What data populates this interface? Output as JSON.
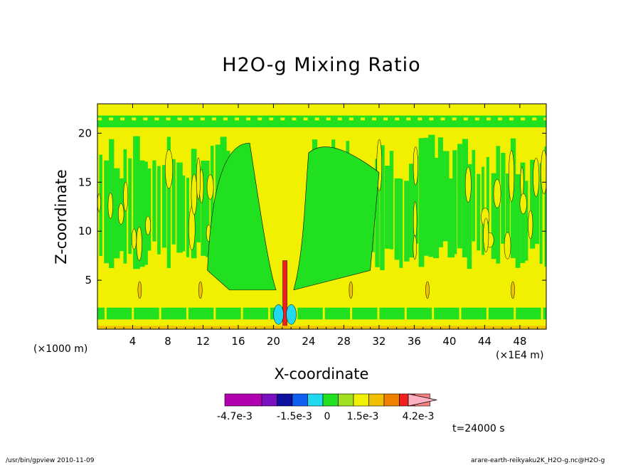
{
  "chart_data": {
    "type": "heatmap",
    "title": "H2O-g Mixing Ratio",
    "xlabel": "X-coordinate",
    "ylabel": "Z-coordinate",
    "x_unit_left": "(×1000 m)",
    "x_unit_right": "(×1E4 m)",
    "xlim": [
      0,
      51
    ],
    "ylim": [
      0,
      23
    ],
    "x_ticks": [
      4,
      8,
      12,
      16,
      20,
      24,
      28,
      32,
      36,
      40,
      44,
      48
    ],
    "y_ticks": [
      5,
      10,
      15,
      20
    ],
    "time_label": "t=24000 s",
    "colorbar": {
      "colors": [
        "#b000b0",
        "#7a10c0",
        "#1010a0",
        "#1060f0",
        "#20d8f0",
        "#20e020",
        "#a0e020",
        "#f0f000",
        "#f0c000",
        "#f08000",
        "#f02020",
        "#f88080",
        "#ffb0c0"
      ],
      "labels": [
        "-4.7e-3",
        "-1.5e-3",
        "0",
        "1.5e-3",
        "4.2e-3"
      ]
    },
    "field": {
      "background_level": "#f0f000",
      "low_level": "#20e020",
      "notable_features": [
        {
          "name": "updraft-core",
          "x": 21.3,
          "z_top": 7,
          "color": "#f02020"
        },
        {
          "name": "negative-anomaly",
          "x": 21.3,
          "z_top": 2.5,
          "color": "#20d8f0"
        }
      ]
    }
  },
  "footer": {
    "left": "/usr/bin/gpview 2010-11-09",
    "right": "arare-earth-reikyaku2K_H2O-g.nc@H2O-g"
  }
}
